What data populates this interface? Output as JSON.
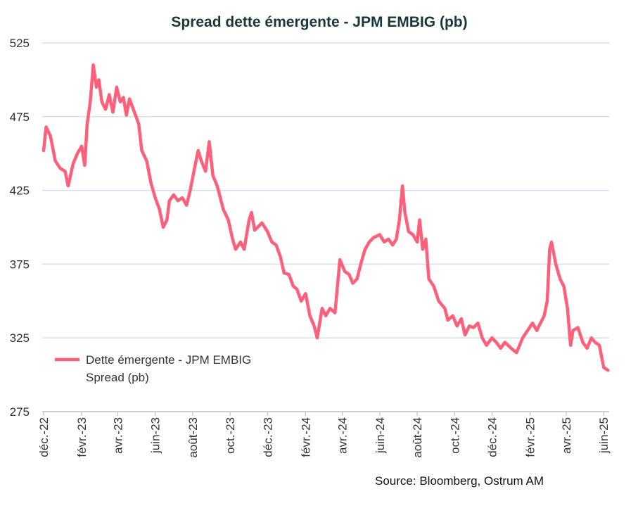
{
  "chart_data": {
    "type": "line",
    "title": "Spread dette émergente  - JPM EMBIG (pb)",
    "xlabel": "",
    "ylabel": "",
    "ylim": [
      275,
      525
    ],
    "yticks": [
      "525",
      "475",
      "425",
      "375",
      "325",
      "275"
    ],
    "xlim": [
      "2022-12-01",
      "2025-06-10"
    ],
    "xticks": [
      {
        "date": "2022-12-01",
        "label": "déc.-22"
      },
      {
        "date": "2023-02-01",
        "label": "févr.-23"
      },
      {
        "date": "2023-04-01",
        "label": "avr.-23"
      },
      {
        "date": "2023-06-01",
        "label": "juin-23"
      },
      {
        "date": "2023-08-01",
        "label": "août-23"
      },
      {
        "date": "2023-10-01",
        "label": "oct.-23"
      },
      {
        "date": "2023-12-01",
        "label": "déc.-23"
      },
      {
        "date": "2024-02-01",
        "label": "févr.-24"
      },
      {
        "date": "2024-04-01",
        "label": "avr.-24"
      },
      {
        "date": "2024-06-01",
        "label": "juin-24"
      },
      {
        "date": "2024-08-01",
        "label": "août-24"
      },
      {
        "date": "2024-10-01",
        "label": "oct.-24"
      },
      {
        "date": "2024-12-01",
        "label": "déc.-24"
      },
      {
        "date": "2025-02-01",
        "label": "févr.-25"
      },
      {
        "date": "2025-04-01",
        "label": "avr.-25"
      },
      {
        "date": "2025-06-01",
        "label": "juin-25"
      }
    ],
    "grid": "horizontal",
    "legend_position": "bottom-left",
    "series": [
      {
        "name": "Dette émergente - JPM EMBIG Spread  (pb)",
        "legend_lines": [
          "Dette émergente - JPM EMBIG",
          "Spread  (pb)"
        ],
        "color": "#ff5f78",
        "points": [
          [
            "2022-12-01",
            452
          ],
          [
            "2022-12-05",
            468
          ],
          [
            "2022-12-12",
            462
          ],
          [
            "2022-12-20",
            445
          ],
          [
            "2022-12-28",
            440
          ],
          [
            "2023-01-05",
            438
          ],
          [
            "2023-01-10",
            428
          ],
          [
            "2023-01-18",
            443
          ],
          [
            "2023-01-25",
            450
          ],
          [
            "2023-02-01",
            455
          ],
          [
            "2023-02-06",
            442
          ],
          [
            "2023-02-10",
            470
          ],
          [
            "2023-02-15",
            485
          ],
          [
            "2023-02-20",
            510
          ],
          [
            "2023-02-25",
            495
          ],
          [
            "2023-03-01",
            500
          ],
          [
            "2023-03-06",
            485
          ],
          [
            "2023-03-12",
            480
          ],
          [
            "2023-03-18",
            490
          ],
          [
            "2023-03-24",
            478
          ],
          [
            "2023-03-30",
            495
          ],
          [
            "2023-04-05",
            485
          ],
          [
            "2023-04-10",
            488
          ],
          [
            "2023-04-15",
            476
          ],
          [
            "2023-04-20",
            487
          ],
          [
            "2023-04-28",
            478
          ],
          [
            "2023-05-05",
            470
          ],
          [
            "2023-05-10",
            452
          ],
          [
            "2023-05-18",
            445
          ],
          [
            "2023-05-25",
            430
          ],
          [
            "2023-06-01",
            420
          ],
          [
            "2023-06-08",
            412
          ],
          [
            "2023-06-14",
            400
          ],
          [
            "2023-06-20",
            405
          ],
          [
            "2023-06-24",
            418
          ],
          [
            "2023-07-01",
            422
          ],
          [
            "2023-07-08",
            418
          ],
          [
            "2023-07-15",
            420
          ],
          [
            "2023-07-22",
            415
          ],
          [
            "2023-07-28",
            425
          ],
          [
            "2023-08-04",
            440
          ],
          [
            "2023-08-10",
            452
          ],
          [
            "2023-08-15",
            445
          ],
          [
            "2023-08-22",
            438
          ],
          [
            "2023-08-28",
            458
          ],
          [
            "2023-09-03",
            435
          ],
          [
            "2023-09-10",
            428
          ],
          [
            "2023-09-20",
            412
          ],
          [
            "2023-09-28",
            405
          ],
          [
            "2023-10-05",
            392
          ],
          [
            "2023-10-10",
            385
          ],
          [
            "2023-10-18",
            390
          ],
          [
            "2023-10-24",
            385
          ],
          [
            "2023-11-01",
            405
          ],
          [
            "2023-11-05",
            410
          ],
          [
            "2023-11-10",
            398
          ],
          [
            "2023-11-15",
            400
          ],
          [
            "2023-11-22",
            403
          ],
          [
            "2023-12-01",
            397
          ],
          [
            "2023-12-08",
            390
          ],
          [
            "2023-12-15",
            388
          ],
          [
            "2023-12-22",
            380
          ],
          [
            "2023-12-28",
            369
          ],
          [
            "2024-01-05",
            368
          ],
          [
            "2024-01-12",
            360
          ],
          [
            "2024-01-18",
            358
          ],
          [
            "2024-01-25",
            350
          ],
          [
            "2024-02-01",
            355
          ],
          [
            "2024-02-08",
            340
          ],
          [
            "2024-02-15",
            333
          ],
          [
            "2024-02-20",
            325
          ],
          [
            "2024-02-28",
            345
          ],
          [
            "2024-03-05",
            340
          ],
          [
            "2024-03-12",
            345
          ],
          [
            "2024-03-20",
            342
          ],
          [
            "2024-03-28",
            378
          ],
          [
            "2024-04-05",
            370
          ],
          [
            "2024-04-12",
            368
          ],
          [
            "2024-04-18",
            362
          ],
          [
            "2024-04-25",
            365
          ],
          [
            "2024-05-01",
            375
          ],
          [
            "2024-05-08",
            385
          ],
          [
            "2024-05-15",
            390
          ],
          [
            "2024-05-22",
            393
          ],
          [
            "2024-06-01",
            395
          ],
          [
            "2024-06-08",
            390
          ],
          [
            "2024-06-15",
            392
          ],
          [
            "2024-06-22",
            388
          ],
          [
            "2024-06-28",
            392
          ],
          [
            "2024-07-03",
            405
          ],
          [
            "2024-07-08",
            428
          ],
          [
            "2024-07-12",
            410
          ],
          [
            "2024-07-18",
            397
          ],
          [
            "2024-07-25",
            395
          ],
          [
            "2024-08-01",
            390
          ],
          [
            "2024-08-05",
            405
          ],
          [
            "2024-08-10",
            385
          ],
          [
            "2024-08-15",
            392
          ],
          [
            "2024-08-20",
            365
          ],
          [
            "2024-08-28",
            360
          ],
          [
            "2024-09-05",
            350
          ],
          [
            "2024-09-15",
            345
          ],
          [
            "2024-09-20",
            337
          ],
          [
            "2024-09-28",
            340
          ],
          [
            "2024-10-05",
            333
          ],
          [
            "2024-10-12",
            338
          ],
          [
            "2024-10-18",
            327
          ],
          [
            "2024-10-25",
            333
          ],
          [
            "2024-11-01",
            332
          ],
          [
            "2024-11-08",
            335
          ],
          [
            "2024-11-15",
            325
          ],
          [
            "2024-11-22",
            320
          ],
          [
            "2024-12-01",
            325
          ],
          [
            "2024-12-08",
            322
          ],
          [
            "2024-12-15",
            318
          ],
          [
            "2024-12-22",
            322
          ],
          [
            "2025-01-01",
            318
          ],
          [
            "2025-01-10",
            315
          ],
          [
            "2025-01-20",
            325
          ],
          [
            "2025-01-28",
            330
          ],
          [
            "2025-02-05",
            335
          ],
          [
            "2025-02-12",
            330
          ],
          [
            "2025-02-18",
            335
          ],
          [
            "2025-02-24",
            340
          ],
          [
            "2025-03-01",
            350
          ],
          [
            "2025-03-05",
            385
          ],
          [
            "2025-03-08",
            390
          ],
          [
            "2025-03-15",
            375
          ],
          [
            "2025-03-22",
            365
          ],
          [
            "2025-03-28",
            360
          ],
          [
            "2025-04-03",
            345
          ],
          [
            "2025-04-08",
            320
          ],
          [
            "2025-04-12",
            330
          ],
          [
            "2025-04-20",
            332
          ],
          [
            "2025-04-28",
            322
          ],
          [
            "2025-05-05",
            318
          ],
          [
            "2025-05-12",
            325
          ],
          [
            "2025-05-18",
            322
          ],
          [
            "2025-05-25",
            320
          ],
          [
            "2025-06-01",
            305
          ],
          [
            "2025-06-08",
            303
          ]
        ]
      }
    ],
    "source": "Source: Bloomberg, Ostrum AM"
  }
}
